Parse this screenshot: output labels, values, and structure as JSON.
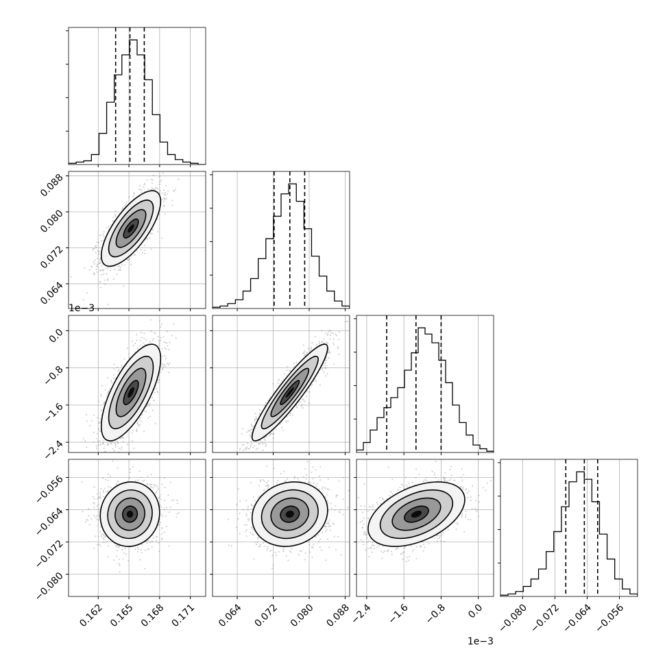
{
  "chart_data": {
    "type": "corner",
    "n_params": 4,
    "grid": true,
    "colors": {
      "line": "#000000",
      "grid": "#b0b0b0",
      "scatter": "#8c8c8c"
    },
    "params": [
      {
        "range": [
          0.1591,
          0.1725
        ],
        "ticks": [
          "0.162",
          "0.165",
          "0.168",
          "0.171"
        ],
        "tick_values": [
          0.162,
          0.165,
          0.168,
          0.171
        ],
        "offset_label": ""
      },
      {
        "range": [
          0.0585,
          0.089
        ],
        "ticks": [
          "0.064",
          "0.072",
          "0.080",
          "0.088"
        ],
        "tick_values": [
          0.064,
          0.072,
          0.08,
          0.088
        ],
        "offset_label": ""
      },
      {
        "range": [
          -2.62,
          0.33
        ],
        "ticks": [
          "−2.4",
          "−1.6",
          "−0.8",
          "0.0"
        ],
        "tick_values": [
          -2.4,
          -1.6,
          -0.8,
          0.0
        ],
        "offset_label": "1e−3"
      },
      {
        "range": [
          -0.0855,
          -0.0515
        ],
        "ticks": [
          "−0.080",
          "−0.072",
          "−0.064",
          "−0.056"
        ],
        "tick_values": [
          -0.08,
          -0.072,
          -0.064,
          -0.056
        ],
        "offset_label": ""
      }
    ],
    "histograms": [
      {
        "param": 0,
        "quantiles": [
          0.1637,
          0.1651,
          0.1665
        ],
        "counts": [
          1,
          2,
          3,
          8,
          25,
          50,
          72,
          88,
          100,
          88,
          68,
          40,
          18,
          8,
          4,
          2,
          1,
          0
        ]
      },
      {
        "param": 1,
        "quantiles": [
          0.0722,
          0.0757,
          0.079
        ],
        "counts": [
          1,
          2,
          4,
          7,
          14,
          24,
          40,
          56,
          74,
          92,
          100,
          86,
          64,
          42,
          26,
          14,
          6,
          2
        ]
      },
      {
        "param": 2,
        "quantiles": [
          -1.97,
          -1.34,
          -0.8
        ],
        "counts": [
          2,
          8,
          18,
          28,
          36,
          44,
          52,
          66,
          80,
          100,
          95,
          88,
          74,
          56,
          38,
          24,
          14,
          6,
          3,
          1
        ]
      },
      {
        "param": 3,
        "quantiles": [
          -0.0693,
          -0.0647,
          -0.0614
        ],
        "counts": [
          1,
          2,
          4,
          8,
          14,
          22,
          36,
          52,
          72,
          92,
          100,
          94,
          76,
          50,
          30,
          14,
          6,
          2
        ]
      }
    ],
    "pairs": [
      {
        "x": 0,
        "y": 1,
        "center": [
          0.1652,
          0.0763
        ],
        "sigma": [
          0.00145,
          0.0042
        ],
        "rho": 0.72
      },
      {
        "x": 0,
        "y": 2,
        "center": [
          0.1652,
          -1.33
        ],
        "sigma": [
          0.00145,
          0.52
        ],
        "rho": 0.7
      },
      {
        "x": 1,
        "y": 2,
        "center": [
          0.0757,
          -1.33
        ],
        "sigma": [
          0.0042,
          0.52
        ],
        "rho": 0.92
      },
      {
        "x": 0,
        "y": 3,
        "center": [
          0.1651,
          -0.0651
        ],
        "sigma": [
          0.00145,
          0.004
        ],
        "rho": 0.05
      },
      {
        "x": 1,
        "y": 3,
        "center": [
          0.0757,
          -0.0651
        ],
        "sigma": [
          0.0042,
          0.004
        ],
        "rho": 0.12
      },
      {
        "x": 2,
        "y": 3,
        "center": [
          -1.33,
          -0.0651
        ],
        "sigma": [
          0.52,
          0.004
        ],
        "rho": 0.45
      }
    ]
  }
}
